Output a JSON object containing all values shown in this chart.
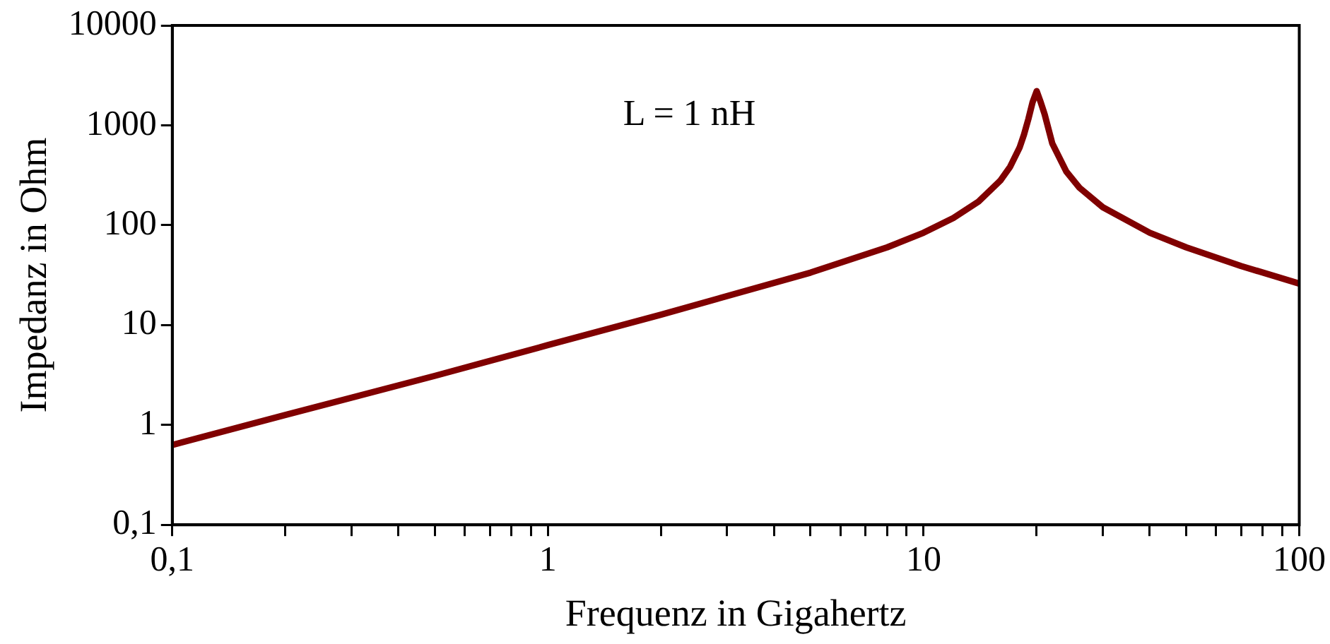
{
  "chart_data": {
    "type": "line",
    "xlabel": "Frequenz in Gigahertz",
    "ylabel": "Impedanz in Ohm",
    "log": "xy",
    "grid": false,
    "legend": false,
    "marker": "none",
    "line_style": "solid",
    "annotations": [
      "L = 1 nH"
    ],
    "xlim": [
      0.1,
      100
    ],
    "ylim": [
      0.1,
      10000
    ],
    "xticks": [
      {
        "value": 0.1,
        "label": "0,1"
      },
      {
        "value": 0.2,
        "label": null
      },
      {
        "value": 0.3,
        "label": null
      },
      {
        "value": 0.4,
        "label": null
      },
      {
        "value": 0.5,
        "label": null
      },
      {
        "value": 0.6,
        "label": null
      },
      {
        "value": 0.7,
        "label": null
      },
      {
        "value": 0.8,
        "label": null
      },
      {
        "value": 0.9,
        "label": null
      },
      1,
      {
        "value": 2,
        "label": null
      },
      {
        "value": 3,
        "label": null
      },
      {
        "value": 4,
        "label": null
      },
      {
        "value": 5,
        "label": null
      },
      {
        "value": 6,
        "label": null
      },
      {
        "value": 7,
        "label": null
      },
      {
        "value": 8,
        "label": null
      },
      {
        "value": 9,
        "label": null
      },
      10,
      {
        "value": 20,
        "label": null
      },
      {
        "value": 30,
        "label": null
      },
      {
        "value": 40,
        "label": null
      },
      {
        "value": 50,
        "label": null
      },
      {
        "value": 60,
        "label": null
      },
      {
        "value": 70,
        "label": null
      },
      {
        "value": 80,
        "label": null
      },
      {
        "value": 90,
        "label": null
      },
      100
    ],
    "yticks": [
      {
        "value": 0.1,
        "label": "0,1"
      },
      1,
      10,
      100,
      1000,
      10000
    ],
    "series": [
      {
        "color": "#800000",
        "x": [
          0.1,
          0.2,
          0.5,
          1,
          2,
          5,
          8,
          10,
          12,
          14,
          16,
          17,
          18,
          18.5,
          19,
          19.5,
          20,
          20.5,
          21,
          22,
          24,
          26,
          30,
          40,
          50,
          70,
          100
        ],
        "values": [
          0.63,
          1.26,
          3.1,
          6.3,
          12.7,
          33.5,
          60,
          84,
          118,
          172,
          279,
          385,
          595,
          805,
          1150,
          1700,
          2200,
          1700,
          1290,
          660,
          343,
          237,
          151,
          84,
          60,
          39,
          26
        ]
      }
    ]
  }
}
